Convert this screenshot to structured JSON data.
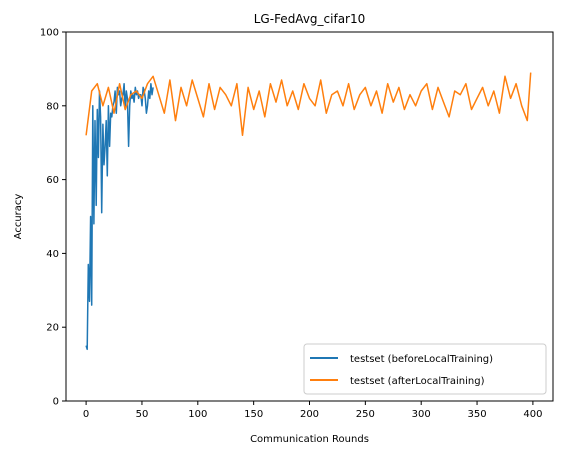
{
  "chart_data": {
    "type": "line",
    "title": "LG-FedAvg_cifar10",
    "xlabel": "Communication Rounds",
    "ylabel": "Accuracy",
    "xlim": [
      -18,
      418
    ],
    "ylim": [
      0,
      100
    ],
    "xticks": [
      0,
      50,
      100,
      150,
      200,
      250,
      300,
      350,
      400
    ],
    "yticks": [
      0,
      20,
      40,
      60,
      80,
      100
    ],
    "grid": false,
    "legend_position": "lower right",
    "series": [
      {
        "name": "testset (beforeLocalTraining)",
        "color": "#1f77b4",
        "x": [
          0,
          1,
          2,
          3,
          4,
          5,
          6,
          7,
          8,
          9,
          10,
          11,
          12,
          13,
          14,
          15,
          16,
          17,
          18,
          19,
          20,
          21,
          22,
          23,
          24,
          25,
          26,
          27,
          28,
          29,
          30,
          31,
          32,
          33,
          34,
          35,
          36,
          37,
          38,
          39,
          40,
          41,
          42,
          43,
          44,
          45,
          46,
          47,
          48,
          49,
          50,
          51,
          52,
          53,
          54,
          55,
          56,
          57,
          58,
          59,
          60
        ],
        "y": [
          15,
          14,
          37,
          27,
          50,
          26,
          80,
          48,
          76,
          53,
          79,
          66,
          84,
          77,
          51,
          75,
          64,
          69,
          76,
          61,
          80,
          69,
          78,
          77,
          80,
          81,
          84,
          78,
          85,
          83,
          84,
          80,
          82,
          83,
          86,
          79,
          84,
          82,
          69,
          80,
          84,
          82,
          83,
          81,
          85,
          83,
          84,
          82,
          83,
          83,
          80,
          85,
          84,
          82,
          78,
          80,
          84,
          82,
          86,
          83,
          85
        ]
      },
      {
        "name": "testset (afterLocalTraining)",
        "color": "#ff7f0e",
        "x": [
          0,
          5,
          10,
          15,
          20,
          25,
          30,
          35,
          40,
          45,
          50,
          55,
          60,
          65,
          70,
          75,
          80,
          85,
          90,
          95,
          100,
          105,
          110,
          115,
          120,
          125,
          130,
          135,
          140,
          145,
          150,
          155,
          160,
          165,
          170,
          175,
          180,
          185,
          190,
          195,
          200,
          205,
          210,
          215,
          220,
          225,
          230,
          235,
          240,
          245,
          250,
          255,
          260,
          265,
          270,
          275,
          280,
          285,
          290,
          295,
          300,
          305,
          310,
          315,
          320,
          325,
          330,
          335,
          340,
          345,
          350,
          355,
          360,
          365,
          370,
          375,
          380,
          385,
          390,
          395,
          398
        ],
        "y": [
          72,
          84,
          86,
          80,
          85,
          78,
          86,
          79,
          83,
          84,
          82,
          86,
          88,
          83,
          78,
          87,
          76,
          85,
          80,
          87,
          82,
          77,
          86,
          79,
          85,
          83,
          80,
          86,
          72,
          85,
          79,
          84,
          77,
          86,
          81,
          87,
          80,
          84,
          79,
          86,
          82,
          80,
          87,
          78,
          83,
          84,
          80,
          86,
          79,
          83,
          85,
          80,
          84,
          78,
          86,
          81,
          85,
          79,
          83,
          80,
          84,
          86,
          79,
          85,
          81,
          77,
          84,
          83,
          86,
          79,
          82,
          85,
          80,
          84,
          78,
          88,
          82,
          86,
          80,
          76,
          89
        ]
      }
    ]
  }
}
